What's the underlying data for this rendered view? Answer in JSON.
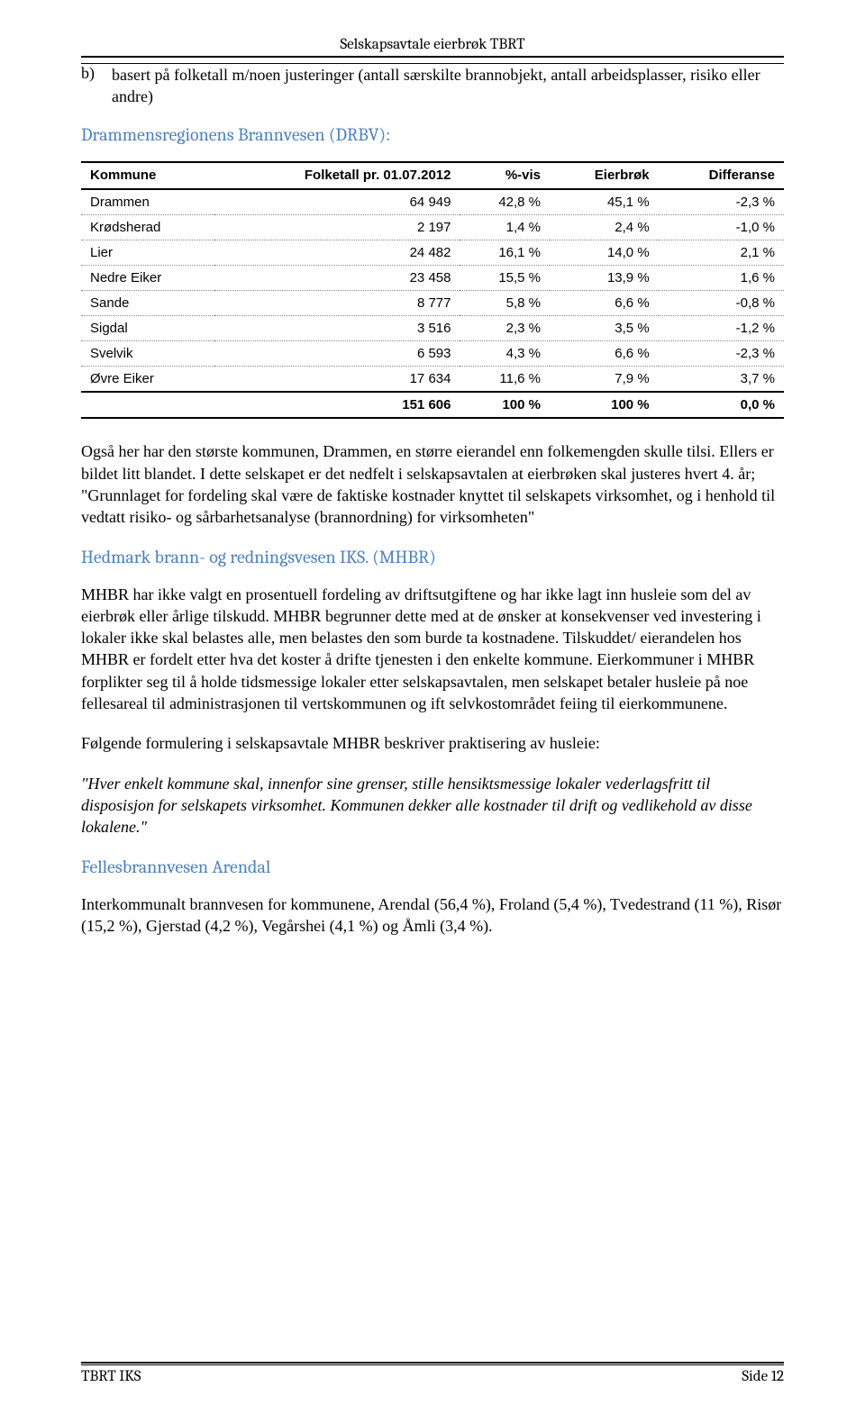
{
  "running_head": "Selskapsavtale eierbrøk TBRT",
  "list": {
    "marker": "b)",
    "text": "basert på folketall m/noen justeringer (antall særskilte brannobjekt, antall arbeidsplasser, risiko eller andre)"
  },
  "section1": {
    "heading": "Drammensregionens Brannvesen (DRBV):",
    "table": {
      "columns": [
        "Kommune",
        "Folketall pr. 01.07.2012",
        "%-vis",
        "Eierbrøk",
        "Differanse"
      ],
      "rows": [
        [
          "Drammen",
          "64 949",
          "42,8 %",
          "45,1 %",
          "-2,3 %"
        ],
        [
          "Krødsherad",
          "2 197",
          "1,4 %",
          "2,4 %",
          "-1,0 %"
        ],
        [
          "Lier",
          "24 482",
          "16,1 %",
          "14,0 %",
          "2,1 %"
        ],
        [
          "Nedre Eiker",
          "23 458",
          "15,5 %",
          "13,9 %",
          "1,6 %"
        ],
        [
          "Sande",
          "8 777",
          "5,8 %",
          "6,6 %",
          "-0,8 %"
        ],
        [
          "Sigdal",
          "3 516",
          "2,3 %",
          "3,5 %",
          "-1,2 %"
        ],
        [
          "Svelvik",
          "6 593",
          "4,3 %",
          "6,6 %",
          "-2,3 %"
        ],
        [
          "Øvre Eiker",
          "17 634",
          "11,6 %",
          "7,9 %",
          "3,7 %"
        ]
      ],
      "total": [
        "",
        "151 606",
        "100 %",
        "100 %",
        "0,0 %"
      ]
    },
    "paragraph": "Også her har den største kommunen, Drammen, en større eierandel enn folkemengden skulle tilsi. Ellers er bildet litt blandet. I dette selskapet er det nedfelt i selskapsavtalen at eierbrøken skal justeres hvert 4. år; \"Grunnlaget for fordeling skal være de faktiske kostnader knyttet til selskapets virksomhet, og i henhold til vedtatt risiko- og sårbarhetsanalyse (brannordning) for virksomheten\""
  },
  "section2": {
    "heading": "Hedmark brann- og redningsvesen IKS. (MHBR)",
    "paragraph1": "MHBR har ikke valgt en prosentuell fordeling av driftsutgiftene og har ikke lagt inn husleie som del av eierbrøk eller årlige tilskudd. MHBR begrunner dette med at de ønsker at konsekvenser ved investering i lokaler ikke skal belastes alle, men belastes den som burde ta kostnadene.  Tilskuddet/ eierandelen hos MHBR er fordelt etter hva det koster å drifte tjenesten i den enkelte kommune. Eierkommuner i MHBR forplikter seg til å holde tidsmessige lokaler etter selskapsavtalen, men selskapet betaler husleie på noe fellesareal til administrasjonen til vertskommunen og ift selvkostområdet feiing til eierkommunene.",
    "paragraph2": "Følgende formulering i selskapsavtale MHBR beskriver praktisering av husleie:",
    "quote": "\"Hver enkelt kommune skal, innenfor sine grenser, stille hensiktsmessige lokaler vederlagsfritt til disposisjon for selskapets virksomhet. Kommunen dekker alle kostnader til drift og vedlikehold av disse lokalene.\""
  },
  "section3": {
    "heading": "Fellesbrannvesen Arendal",
    "paragraph": "Interkommunalt brannvesen for kommunene, Arendal (56,4 %), Froland (5,4 %), Tvedestrand (11 %), Risør (15,2 %), Gjerstad (4,2 %), Vegårshei (4,1 %) og Åmli (3,4 %)."
  },
  "footer": {
    "left": "TBRT IKS",
    "right": "Side 12"
  }
}
